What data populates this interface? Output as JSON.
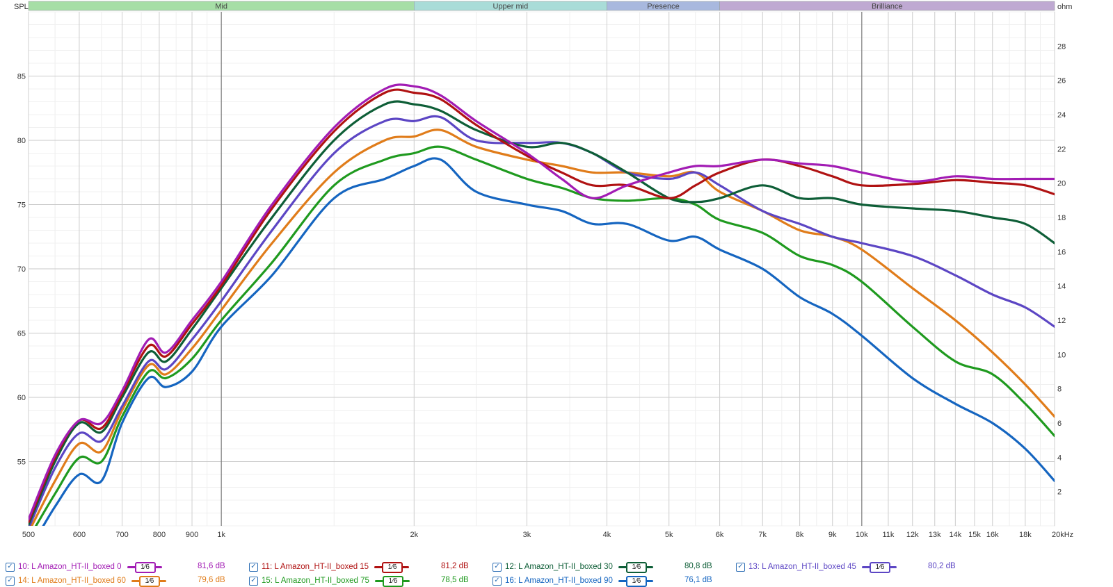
{
  "chart_data": {
    "type": "line",
    "ylabel": "SPL",
    "y2label": "ohm",
    "xlim": [
      500,
      20000
    ],
    "ylim": [
      50,
      90
    ],
    "y2lim": [
      0,
      30
    ],
    "x_scale": "log",
    "grid": true,
    "legend_placement": "bottom",
    "x_ticks": [
      {
        "v": 500,
        "t": "500"
      },
      {
        "v": 600,
        "t": "600"
      },
      {
        "v": 700,
        "t": "700"
      },
      {
        "v": 800,
        "t": "800"
      },
      {
        "v": 900,
        "t": "900"
      },
      {
        "v": 1000,
        "t": "1k"
      },
      {
        "v": 2000,
        "t": "2k"
      },
      {
        "v": 3000,
        "t": "3k"
      },
      {
        "v": 4000,
        "t": "4k"
      },
      {
        "v": 5000,
        "t": "5k"
      },
      {
        "v": 6000,
        "t": "6k"
      },
      {
        "v": 7000,
        "t": "7k"
      },
      {
        "v": 8000,
        "t": "8k"
      },
      {
        "v": 9000,
        "t": "9k"
      },
      {
        "v": 10000,
        "t": "10k"
      },
      {
        "v": 11000,
        "t": "11k"
      },
      {
        "v": 12000,
        "t": "12k"
      },
      {
        "v": 13000,
        "t": "13k"
      },
      {
        "v": 14000,
        "t": "14k"
      },
      {
        "v": 15000,
        "t": "15k"
      },
      {
        "v": 16000,
        "t": "16k"
      },
      {
        "v": 18000,
        "t": "18k"
      },
      {
        "v": 20000,
        "t": "20kHz"
      }
    ],
    "y_ticks": [
      55,
      60,
      65,
      70,
      75,
      80,
      85
    ],
    "y2_ticks": [
      2,
      4,
      6,
      8,
      10,
      12,
      14,
      16,
      18,
      20,
      22,
      24,
      26,
      28
    ],
    "bands": [
      {
        "name": "Mid",
        "from": 500,
        "to": 2000,
        "color": "#a6dea6"
      },
      {
        "name": "Upper mid",
        "from": 2000,
        "to": 4000,
        "color": "#a9dcd8"
      },
      {
        "name": "Presence",
        "from": 4000,
        "to": 6000,
        "color": "#a8b8de"
      },
      {
        "name": "Brilliance",
        "from": 6000,
        "to": 20000,
        "color": "#bfa9d2"
      }
    ],
    "series": [
      {
        "name": "10: L Amazon_HT-II_boxed 0",
        "color": "#a21cb4",
        "legend_value": "81,6 dB",
        "x": [
          500,
          550,
          600,
          650,
          700,
          770,
          820,
          900,
          1000,
          1200,
          1500,
          1800,
          2000,
          2200,
          2500,
          3000,
          3400,
          3800,
          4300,
          5000,
          5500,
          6000,
          7000,
          8000,
          9000,
          10000,
          12000,
          14000,
          16000,
          18000,
          20000
        ],
        "y": [
          50.5,
          55.5,
          58.2,
          58.0,
          60.5,
          64.5,
          63.5,
          66.0,
          69.0,
          75.0,
          81.0,
          84.0,
          84.2,
          83.5,
          81.5,
          79.0,
          77.0,
          75.5,
          76.5,
          77.5,
          78.0,
          78.0,
          78.5,
          78.2,
          78.0,
          77.5,
          76.8,
          77.2,
          77.0,
          77.0,
          77.0
        ]
      },
      {
        "name": "11: L Amazon_HT-II_boxed 15",
        "color": "#b01212",
        "legend_value": "81,2 dB",
        "x": [
          500,
          550,
          600,
          650,
          700,
          770,
          820,
          900,
          1000,
          1200,
          1500,
          1800,
          2000,
          2200,
          2500,
          3000,
          3400,
          3800,
          4300,
          5000,
          5500,
          6000,
          7000,
          8000,
          9000,
          10000,
          12000,
          14000,
          16000,
          18000,
          20000
        ],
        "y": [
          50.3,
          55.3,
          58.2,
          57.6,
          60.3,
          64.0,
          63.2,
          65.7,
          68.7,
          74.7,
          80.7,
          83.7,
          83.7,
          83.2,
          81.2,
          78.8,
          77.5,
          76.5,
          76.5,
          75.5,
          76.5,
          77.5,
          78.5,
          78.0,
          77.2,
          76.5,
          76.6,
          76.9,
          76.7,
          76.5,
          75.8
        ]
      },
      {
        "name": "12: L Amazon_HT-II_boxed 30",
        "color": "#0e5e37",
        "legend_value": "80,8 dB",
        "x": [
          500,
          550,
          600,
          650,
          700,
          770,
          820,
          900,
          1000,
          1200,
          1500,
          1800,
          2000,
          2200,
          2500,
          3000,
          3400,
          3800,
          4300,
          5000,
          5500,
          6000,
          7000,
          8000,
          9000,
          10000,
          12000,
          14000,
          16000,
          18000,
          20000
        ],
        "y": [
          50.1,
          55.0,
          58.0,
          57.3,
          60.0,
          63.5,
          62.8,
          65.3,
          68.5,
          74.0,
          80.0,
          82.8,
          82.8,
          82.3,
          80.8,
          79.5,
          79.8,
          79.0,
          77.5,
          75.5,
          75.2,
          75.5,
          76.5,
          75.5,
          75.5,
          75.0,
          74.7,
          74.5,
          74.0,
          73.5,
          72.0
        ]
      },
      {
        "name": "13: L Amazon_HT-II_boxed 45",
        "color": "#5c46c4",
        "legend_value": "80,2 dB",
        "x": [
          500,
          550,
          600,
          650,
          700,
          770,
          820,
          900,
          1000,
          1200,
          1500,
          1800,
          2000,
          2200,
          2500,
          3000,
          3400,
          3800,
          4300,
          5000,
          5500,
          6000,
          7000,
          8000,
          9000,
          10000,
          12000,
          14000,
          16000,
          18000,
          20000
        ],
        "y": [
          49.8,
          54.5,
          57.2,
          56.6,
          59.3,
          62.8,
          62.2,
          64.5,
          67.5,
          73.0,
          79.0,
          81.5,
          81.5,
          81.8,
          80.0,
          79.8,
          79.8,
          79.0,
          77.5,
          77.0,
          77.5,
          76.5,
          74.5,
          73.5,
          72.5,
          72.0,
          71.0,
          69.5,
          68.0,
          67.0,
          65.5
        ]
      },
      {
        "name": "14: L Amazon_HT-II_boxed 60",
        "color": "#e07c1a",
        "legend_value": "79,6 dB",
        "x": [
          500,
          550,
          600,
          650,
          700,
          770,
          820,
          900,
          1000,
          1200,
          1500,
          1800,
          2000,
          2200,
          2500,
          3000,
          3400,
          3800,
          4300,
          5000,
          5500,
          6000,
          7000,
          8000,
          9000,
          10000,
          12000,
          14000,
          16000,
          18000,
          20000
        ],
        "y": [
          49.5,
          53.5,
          56.4,
          55.8,
          59.0,
          62.5,
          61.8,
          63.8,
          66.8,
          72.0,
          77.5,
          80.0,
          80.3,
          80.8,
          79.5,
          78.5,
          78.0,
          77.5,
          77.5,
          77.2,
          77.5,
          76.0,
          74.5,
          73.0,
          72.5,
          71.5,
          68.5,
          66.0,
          63.5,
          61.0,
          58.5
        ]
      },
      {
        "name": "15: L Amazon_HT-II_boxed 75",
        "color": "#1f9a1f",
        "legend_value": "78,5 dB",
        "x": [
          500,
          550,
          600,
          650,
          700,
          770,
          820,
          900,
          1000,
          1200,
          1500,
          1800,
          2000,
          2200,
          2500,
          3000,
          3400,
          3800,
          4300,
          5000,
          5500,
          6000,
          7000,
          8000,
          9000,
          10000,
          12000,
          14000,
          16000,
          18000,
          20000
        ],
        "y": [
          49.0,
          52.5,
          55.3,
          55.0,
          58.5,
          62.0,
          61.5,
          63.0,
          66.0,
          70.5,
          76.5,
          78.5,
          79.0,
          79.5,
          78.5,
          77.0,
          76.3,
          75.5,
          75.3,
          75.5,
          75.0,
          73.8,
          72.8,
          71.0,
          70.3,
          69.0,
          65.5,
          62.8,
          61.8,
          59.5,
          57.0
        ]
      },
      {
        "name": "16: L Amazon_HT-II_boxed 90",
        "color": "#1565c0",
        "legend_value": "76,1 dB",
        "x": [
          500,
          550,
          600,
          650,
          700,
          770,
          820,
          900,
          1000,
          1200,
          1500,
          1800,
          2000,
          2200,
          2500,
          3000,
          3400,
          3800,
          4300,
          5000,
          5500,
          6000,
          7000,
          8000,
          9000,
          10000,
          12000,
          14000,
          16000,
          18000,
          20000
        ],
        "y": [
          48.0,
          51.5,
          54.0,
          53.5,
          58.0,
          61.5,
          60.8,
          62.0,
          65.5,
          69.5,
          75.5,
          77.0,
          78.0,
          78.5,
          76.0,
          75.0,
          74.5,
          73.5,
          73.5,
          72.2,
          72.5,
          71.5,
          70.0,
          67.8,
          66.5,
          64.8,
          61.5,
          59.5,
          58.0,
          56.0,
          53.5
        ]
      }
    ]
  },
  "legend": {
    "smoothing_label": "1⁄6",
    "checkbox_glyph": "✓"
  }
}
